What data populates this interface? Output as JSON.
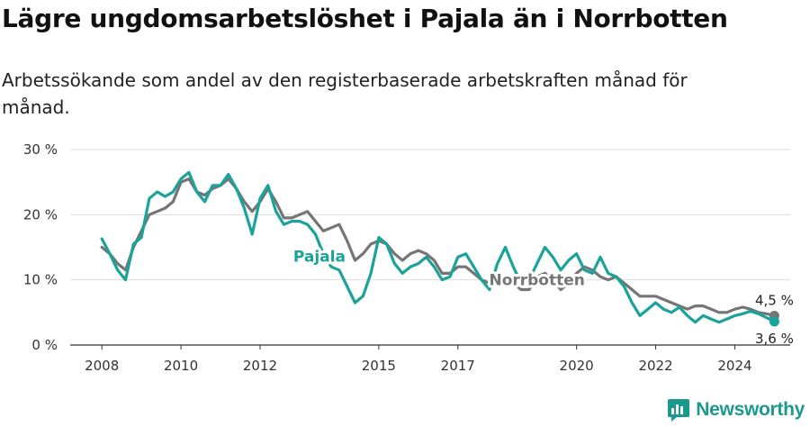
{
  "title": "Lägre ungdomsarbetslöshet i Pajala än i Norrbotten",
  "subtitle": "Arbetssökande som andel av den registerbaserade arbetskraften månad för månad.",
  "brand": "Newsworthy",
  "colors": {
    "pajala": "#1aa39a",
    "norrbotten": "#757575",
    "grid": "#dddddd",
    "brand": "#1a9a8f"
  },
  "icons": {
    "brand": "newsworthy-logo-icon"
  },
  "chart_data": {
    "type": "line",
    "x_ticks": [
      "2008",
      "2010",
      "2012",
      "2015",
      "2017",
      "2020",
      "2022",
      "2024"
    ],
    "x_tick_values": [
      2008,
      2010,
      2012,
      2015,
      2017,
      2020,
      2022,
      2024
    ],
    "y_ticks": [
      "0 %",
      "10 %",
      "20 %",
      "30 %"
    ],
    "y_tick_values": [
      0,
      10,
      20,
      30
    ],
    "xlim": [
      2007.2,
      2025.4
    ],
    "ylim": [
      0,
      30
    ],
    "grid": true,
    "legend": "none",
    "series": [
      {
        "name": "Pajala",
        "key": "pajala",
        "last_label": "3,6 %",
        "points": [
          [
            2008.0,
            16.3
          ],
          [
            2008.2,
            14.0
          ],
          [
            2008.4,
            11.5
          ],
          [
            2008.6,
            10.0
          ],
          [
            2008.8,
            15.5
          ],
          [
            2009.0,
            16.5
          ],
          [
            2009.2,
            22.5
          ],
          [
            2009.4,
            23.5
          ],
          [
            2009.6,
            22.8
          ],
          [
            2009.8,
            23.5
          ],
          [
            2010.0,
            25.5
          ],
          [
            2010.2,
            26.5
          ],
          [
            2010.4,
            23.5
          ],
          [
            2010.6,
            22.0
          ],
          [
            2010.8,
            24.5
          ],
          [
            2011.0,
            24.5
          ],
          [
            2011.2,
            26.2
          ],
          [
            2011.4,
            24.0
          ],
          [
            2011.6,
            21.0
          ],
          [
            2011.8,
            17.0
          ],
          [
            2012.0,
            22.5
          ],
          [
            2012.2,
            24.5
          ],
          [
            2012.4,
            20.5
          ],
          [
            2012.6,
            18.5
          ],
          [
            2012.8,
            19.0
          ],
          [
            2013.0,
            19.0
          ],
          [
            2013.2,
            18.5
          ],
          [
            2013.4,
            17.0
          ],
          [
            2013.6,
            14.0
          ],
          [
            2013.8,
            12.0
          ],
          [
            2014.0,
            11.5
          ],
          [
            2014.2,
            9.0
          ],
          [
            2014.4,
            6.5
          ],
          [
            2014.6,
            7.5
          ],
          [
            2014.8,
            11.0
          ],
          [
            2015.0,
            16.5
          ],
          [
            2015.2,
            15.5
          ],
          [
            2015.4,
            12.5
          ],
          [
            2015.6,
            11.0
          ],
          [
            2015.8,
            12.0
          ],
          [
            2016.0,
            12.5
          ],
          [
            2016.2,
            13.5
          ],
          [
            2016.4,
            12.0
          ],
          [
            2016.6,
            10.0
          ],
          [
            2016.8,
            10.5
          ],
          [
            2017.0,
            13.5
          ],
          [
            2017.2,
            14.0
          ],
          [
            2017.4,
            12.0
          ],
          [
            2017.6,
            10.0
          ],
          [
            2017.8,
            8.5
          ],
          [
            2018.0,
            12.5
          ],
          [
            2018.2,
            15.0
          ],
          [
            2018.4,
            12.0
          ],
          [
            2018.6,
            9.5
          ],
          [
            2018.8,
            10.0
          ],
          [
            2019.0,
            12.5
          ],
          [
            2019.2,
            15.0
          ],
          [
            2019.4,
            13.5
          ],
          [
            2019.6,
            11.5
          ],
          [
            2019.8,
            13.0
          ],
          [
            2020.0,
            14.0
          ],
          [
            2020.2,
            11.5
          ],
          [
            2020.4,
            11.0
          ],
          [
            2020.6,
            13.5
          ],
          [
            2020.8,
            11.0
          ],
          [
            2021.0,
            10.5
          ],
          [
            2021.2,
            9.0
          ],
          [
            2021.4,
            6.5
          ],
          [
            2021.6,
            4.5
          ],
          [
            2021.8,
            5.5
          ],
          [
            2022.0,
            6.5
          ],
          [
            2022.2,
            5.5
          ],
          [
            2022.4,
            5.0
          ],
          [
            2022.6,
            5.8
          ],
          [
            2022.8,
            4.5
          ],
          [
            2023.0,
            3.5
          ],
          [
            2023.2,
            4.5
          ],
          [
            2023.4,
            4.0
          ],
          [
            2023.6,
            3.5
          ],
          [
            2023.8,
            4.0
          ],
          [
            2024.0,
            4.5
          ],
          [
            2024.2,
            4.8
          ],
          [
            2024.4,
            5.2
          ],
          [
            2024.6,
            4.8
          ],
          [
            2024.8,
            4.2
          ],
          [
            2025.0,
            3.6
          ]
        ]
      },
      {
        "name": "Norrbotten",
        "key": "norrbotten",
        "last_label": "4,5 %",
        "points": [
          [
            2008.0,
            15.0
          ],
          [
            2008.2,
            14.0
          ],
          [
            2008.4,
            12.5
          ],
          [
            2008.6,
            11.5
          ],
          [
            2008.8,
            15.0
          ],
          [
            2009.0,
            17.5
          ],
          [
            2009.2,
            20.0
          ],
          [
            2009.4,
            20.5
          ],
          [
            2009.6,
            21.0
          ],
          [
            2009.8,
            22.0
          ],
          [
            2010.0,
            25.0
          ],
          [
            2010.2,
            25.5
          ],
          [
            2010.4,
            23.5
          ],
          [
            2010.6,
            23.0
          ],
          [
            2010.8,
            24.0
          ],
          [
            2011.0,
            24.5
          ],
          [
            2011.2,
            25.5
          ],
          [
            2011.4,
            24.0
          ],
          [
            2011.6,
            22.0
          ],
          [
            2011.8,
            20.5
          ],
          [
            2012.0,
            22.0
          ],
          [
            2012.2,
            24.0
          ],
          [
            2012.4,
            22.0
          ],
          [
            2012.6,
            19.5
          ],
          [
            2012.8,
            19.5
          ],
          [
            2013.0,
            20.0
          ],
          [
            2013.2,
            20.5
          ],
          [
            2013.4,
            19.0
          ],
          [
            2013.6,
            17.5
          ],
          [
            2013.8,
            18.0
          ],
          [
            2014.0,
            18.5
          ],
          [
            2014.2,
            16.0
          ],
          [
            2014.4,
            13.0
          ],
          [
            2014.6,
            14.0
          ],
          [
            2014.8,
            15.5
          ],
          [
            2015.0,
            16.0
          ],
          [
            2015.2,
            15.5
          ],
          [
            2015.4,
            14.0
          ],
          [
            2015.6,
            13.0
          ],
          [
            2015.8,
            14.0
          ],
          [
            2016.0,
            14.5
          ],
          [
            2016.2,
            14.0
          ],
          [
            2016.4,
            13.0
          ],
          [
            2016.6,
            11.0
          ],
          [
            2016.8,
            11.0
          ],
          [
            2017.0,
            12.0
          ],
          [
            2017.2,
            12.0
          ],
          [
            2017.4,
            11.0
          ],
          [
            2017.6,
            10.0
          ],
          [
            2017.8,
            9.5
          ],
          [
            2018.0,
            10.0
          ],
          [
            2018.2,
            10.5
          ],
          [
            2018.4,
            9.5
          ],
          [
            2018.6,
            8.5
          ],
          [
            2018.8,
            8.5
          ],
          [
            2019.0,
            10.5
          ],
          [
            2019.2,
            11.0
          ],
          [
            2019.4,
            10.0
          ],
          [
            2019.6,
            8.5
          ],
          [
            2019.8,
            9.5
          ],
          [
            2020.0,
            11.0
          ],
          [
            2020.2,
            12.0
          ],
          [
            2020.4,
            11.5
          ],
          [
            2020.6,
            10.5
          ],
          [
            2020.8,
            10.0
          ],
          [
            2021.0,
            10.5
          ],
          [
            2021.2,
            9.5
          ],
          [
            2021.4,
            8.5
          ],
          [
            2021.6,
            7.5
          ],
          [
            2021.8,
            7.5
          ],
          [
            2022.0,
            7.5
          ],
          [
            2022.2,
            7.0
          ],
          [
            2022.4,
            6.5
          ],
          [
            2022.6,
            6.0
          ],
          [
            2022.8,
            5.5
          ],
          [
            2023.0,
            6.0
          ],
          [
            2023.2,
            6.0
          ],
          [
            2023.4,
            5.5
          ],
          [
            2023.6,
            5.0
          ],
          [
            2023.8,
            5.0
          ],
          [
            2024.0,
            5.5
          ],
          [
            2024.2,
            5.8
          ],
          [
            2024.4,
            5.5
          ],
          [
            2024.6,
            5.0
          ],
          [
            2024.8,
            4.8
          ],
          [
            2025.0,
            4.5
          ]
        ]
      }
    ]
  }
}
